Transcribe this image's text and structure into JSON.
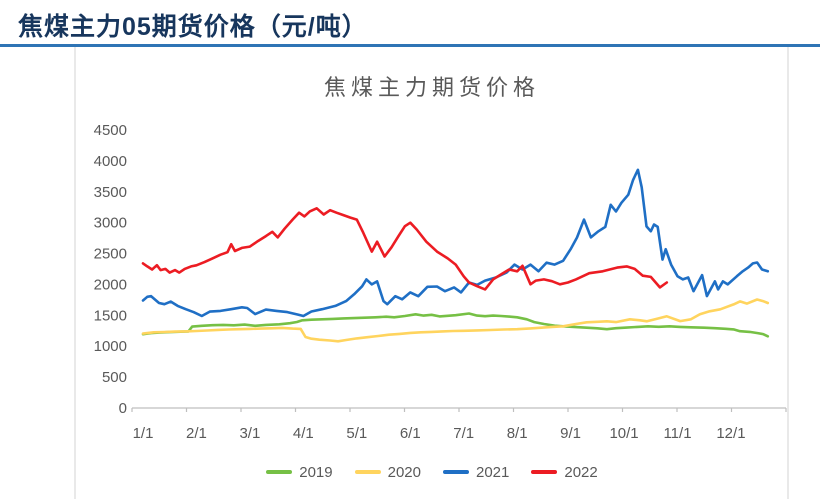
{
  "page": {
    "title": "焦煤主力05期货价格（元/吨）",
    "title_color": "#17365D",
    "rule_color": "#2E74B5"
  },
  "chart_data": {
    "type": "line",
    "title": "焦煤主力期货价格",
    "xlabel": "",
    "ylabel": "",
    "ylim": [
      0,
      4500
    ],
    "y_ticks": [
      0,
      500,
      1000,
      1500,
      2000,
      2500,
      3000,
      3500,
      4000,
      4500
    ],
    "x_tick_labels": [
      "1/1",
      "2/1",
      "3/1",
      "4/1",
      "5/1",
      "6/1",
      "7/1",
      "8/1",
      "9/1",
      "10/1",
      "11/1",
      "12/1"
    ],
    "grid": false,
    "legend_position": "bottom",
    "axis_color": "#BFBFBF",
    "text_color": "#595959",
    "x_is_month_index": true,
    "series": [
      {
        "name": "2019",
        "color": "#76C045",
        "points": [
          [
            0,
            1195
          ],
          [
            0.15,
            1212
          ],
          [
            0.3,
            1220
          ],
          [
            0.5,
            1228
          ],
          [
            0.7,
            1235
          ],
          [
            0.85,
            1240
          ],
          [
            0.92,
            1318
          ],
          [
            1.1,
            1330
          ],
          [
            1.3,
            1340
          ],
          [
            1.5,
            1345
          ],
          [
            1.7,
            1338
          ],
          [
            1.9,
            1350
          ],
          [
            2.1,
            1330
          ],
          [
            2.3,
            1345
          ],
          [
            2.55,
            1355
          ],
          [
            2.75,
            1372
          ],
          [
            2.88,
            1392
          ],
          [
            2.98,
            1420
          ],
          [
            3.15,
            1430
          ],
          [
            3.35,
            1436
          ],
          [
            3.55,
            1442
          ],
          [
            3.75,
            1450
          ],
          [
            3.95,
            1455
          ],
          [
            4.15,
            1462
          ],
          [
            4.35,
            1468
          ],
          [
            4.55,
            1478
          ],
          [
            4.7,
            1468
          ],
          [
            4.9,
            1490
          ],
          [
            5.1,
            1516
          ],
          [
            5.25,
            1495
          ],
          [
            5.4,
            1508
          ],
          [
            5.55,
            1482
          ],
          [
            5.7,
            1492
          ],
          [
            5.85,
            1502
          ],
          [
            6.1,
            1530
          ],
          [
            6.25,
            1496
          ],
          [
            6.4,
            1486
          ],
          [
            6.55,
            1496
          ],
          [
            6.7,
            1490
          ],
          [
            6.85,
            1480
          ],
          [
            7.0,
            1468
          ],
          [
            7.18,
            1436
          ],
          [
            7.32,
            1390
          ],
          [
            7.5,
            1360
          ],
          [
            7.7,
            1332
          ],
          [
            7.86,
            1322
          ],
          [
            8.1,
            1310
          ],
          [
            8.3,
            1300
          ],
          [
            8.5,
            1290
          ],
          [
            8.68,
            1275
          ],
          [
            8.85,
            1292
          ],
          [
            9.05,
            1302
          ],
          [
            9.25,
            1312
          ],
          [
            9.45,
            1322
          ],
          [
            9.65,
            1315
          ],
          [
            9.85,
            1322
          ],
          [
            10.05,
            1312
          ],
          [
            10.25,
            1306
          ],
          [
            10.5,
            1300
          ],
          [
            10.7,
            1292
          ],
          [
            10.9,
            1282
          ],
          [
            11.05,
            1272
          ],
          [
            11.17,
            1243
          ],
          [
            11.35,
            1232
          ],
          [
            11.5,
            1212
          ],
          [
            11.6,
            1196
          ],
          [
            11.69,
            1160
          ]
        ]
      },
      {
        "name": "2020",
        "color": "#FFD45E",
        "points": [
          [
            0,
            1205
          ],
          [
            0.2,
            1226
          ],
          [
            0.4,
            1230
          ],
          [
            0.6,
            1236
          ],
          [
            0.8,
            1240
          ],
          [
            1.0,
            1246
          ],
          [
            1.2,
            1255
          ],
          [
            1.4,
            1265
          ],
          [
            1.6,
            1270
          ],
          [
            1.8,
            1276
          ],
          [
            2.0,
            1280
          ],
          [
            2.2,
            1286
          ],
          [
            2.4,
            1290
          ],
          [
            2.6,
            1296
          ],
          [
            2.8,
            1286
          ],
          [
            2.95,
            1280
          ],
          [
            3.04,
            1150
          ],
          [
            3.15,
            1122
          ],
          [
            3.3,
            1106
          ],
          [
            3.5,
            1092
          ],
          [
            3.65,
            1080
          ],
          [
            3.8,
            1100
          ],
          [
            4.0,
            1126
          ],
          [
            4.2,
            1146
          ],
          [
            4.4,
            1166
          ],
          [
            4.6,
            1186
          ],
          [
            4.8,
            1200
          ],
          [
            5.0,
            1216
          ],
          [
            5.2,
            1226
          ],
          [
            5.4,
            1232
          ],
          [
            5.6,
            1240
          ],
          [
            5.8,
            1246
          ],
          [
            6.0,
            1250
          ],
          [
            6.25,
            1256
          ],
          [
            6.5,
            1262
          ],
          [
            6.75,
            1270
          ],
          [
            7.0,
            1276
          ],
          [
            7.25,
            1288
          ],
          [
            7.45,
            1300
          ],
          [
            7.65,
            1312
          ],
          [
            7.86,
            1322
          ],
          [
            8.1,
            1360
          ],
          [
            8.3,
            1387
          ],
          [
            8.5,
            1396
          ],
          [
            8.68,
            1403
          ],
          [
            8.85,
            1390
          ],
          [
            9.11,
            1436
          ],
          [
            9.3,
            1420
          ],
          [
            9.43,
            1403
          ],
          [
            9.6,
            1440
          ],
          [
            9.8,
            1484
          ],
          [
            10.05,
            1406
          ],
          [
            10.25,
            1436
          ],
          [
            10.42,
            1516
          ],
          [
            10.6,
            1566
          ],
          [
            10.8,
            1597
          ],
          [
            11.05,
            1677
          ],
          [
            11.17,
            1726
          ],
          [
            11.3,
            1690
          ],
          [
            11.49,
            1756
          ],
          [
            11.6,
            1730
          ],
          [
            11.69,
            1700
          ]
        ]
      },
      {
        "name": "2021",
        "color": "#1F6FC5",
        "points": [
          [
            0,
            1740
          ],
          [
            0.08,
            1800
          ],
          [
            0.15,
            1812
          ],
          [
            0.3,
            1700
          ],
          [
            0.4,
            1680
          ],
          [
            0.52,
            1722
          ],
          [
            0.65,
            1652
          ],
          [
            0.8,
            1600
          ],
          [
            0.95,
            1550
          ],
          [
            1.1,
            1490
          ],
          [
            1.25,
            1560
          ],
          [
            1.45,
            1572
          ],
          [
            1.65,
            1600
          ],
          [
            1.85,
            1630
          ],
          [
            1.95,
            1618
          ],
          [
            2.1,
            1520
          ],
          [
            2.3,
            1592
          ],
          [
            2.5,
            1572
          ],
          [
            2.7,
            1552
          ],
          [
            2.9,
            1512
          ],
          [
            3.0,
            1490
          ],
          [
            3.15,
            1562
          ],
          [
            3.35,
            1600
          ],
          [
            3.6,
            1652
          ],
          [
            3.8,
            1730
          ],
          [
            3.95,
            1840
          ],
          [
            4.1,
            1970
          ],
          [
            4.18,
            2082
          ],
          [
            4.28,
            2000
          ],
          [
            4.38,
            2050
          ],
          [
            4.5,
            1730
          ],
          [
            4.57,
            1680
          ],
          [
            4.72,
            1810
          ],
          [
            4.85,
            1760
          ],
          [
            5.0,
            1872
          ],
          [
            5.15,
            1810
          ],
          [
            5.32,
            1962
          ],
          [
            5.5,
            1966
          ],
          [
            5.65,
            1890
          ],
          [
            5.82,
            1952
          ],
          [
            5.95,
            1872
          ],
          [
            6.1,
            2032
          ],
          [
            6.25,
            1992
          ],
          [
            6.4,
            2062
          ],
          [
            6.6,
            2112
          ],
          [
            6.8,
            2192
          ],
          [
            6.95,
            2322
          ],
          [
            7.1,
            2242
          ],
          [
            7.25,
            2322
          ],
          [
            7.4,
            2212
          ],
          [
            7.55,
            2352
          ],
          [
            7.7,
            2322
          ],
          [
            7.86,
            2382
          ],
          [
            8.0,
            2570
          ],
          [
            8.12,
            2760
          ],
          [
            8.25,
            3050
          ],
          [
            8.38,
            2762
          ],
          [
            8.52,
            2860
          ],
          [
            8.65,
            2932
          ],
          [
            8.75,
            3290
          ],
          [
            8.85,
            3180
          ],
          [
            8.95,
            3322
          ],
          [
            9.08,
            3452
          ],
          [
            9.17,
            3692
          ],
          [
            9.26,
            3855
          ],
          [
            9.33,
            3572
          ],
          [
            9.42,
            2940
          ],
          [
            9.5,
            2860
          ],
          [
            9.56,
            2970
          ],
          [
            9.63,
            2932
          ],
          [
            9.72,
            2402
          ],
          [
            9.78,
            2570
          ],
          [
            9.88,
            2322
          ],
          [
            10.0,
            2132
          ],
          [
            10.1,
            2082
          ],
          [
            10.2,
            2112
          ],
          [
            10.3,
            1890
          ],
          [
            10.46,
            2152
          ],
          [
            10.55,
            1812
          ],
          [
            10.7,
            2050
          ],
          [
            10.76,
            1920
          ],
          [
            10.85,
            2050
          ],
          [
            10.94,
            2000
          ],
          [
            11.11,
            2132
          ],
          [
            11.22,
            2212
          ],
          [
            11.32,
            2272
          ],
          [
            11.41,
            2340
          ],
          [
            11.49,
            2356
          ],
          [
            11.58,
            2242
          ],
          [
            11.69,
            2212
          ]
        ]
      },
      {
        "name": "2022",
        "color": "#EC1C23",
        "points": [
          [
            0,
            2340
          ],
          [
            0.08,
            2292
          ],
          [
            0.17,
            2242
          ],
          [
            0.26,
            2312
          ],
          [
            0.33,
            2232
          ],
          [
            0.42,
            2252
          ],
          [
            0.5,
            2192
          ],
          [
            0.6,
            2232
          ],
          [
            0.68,
            2192
          ],
          [
            0.78,
            2252
          ],
          [
            0.9,
            2292
          ],
          [
            1.0,
            2310
          ],
          [
            1.15,
            2362
          ],
          [
            1.3,
            2422
          ],
          [
            1.45,
            2482
          ],
          [
            1.58,
            2522
          ],
          [
            1.65,
            2652
          ],
          [
            1.72,
            2542
          ],
          [
            1.85,
            2592
          ],
          [
            2.0,
            2612
          ],
          [
            2.15,
            2702
          ],
          [
            2.3,
            2782
          ],
          [
            2.42,
            2852
          ],
          [
            2.52,
            2762
          ],
          [
            2.65,
            2902
          ],
          [
            2.8,
            3052
          ],
          [
            2.92,
            3162
          ],
          [
            3.02,
            3102
          ],
          [
            3.12,
            3182
          ],
          [
            3.25,
            3232
          ],
          [
            3.38,
            3132
          ],
          [
            3.5,
            3202
          ],
          [
            3.62,
            3162
          ],
          [
            3.75,
            3122
          ],
          [
            3.88,
            3082
          ],
          [
            4.0,
            3050
          ],
          [
            4.12,
            2840
          ],
          [
            4.28,
            2532
          ],
          [
            4.38,
            2692
          ],
          [
            4.52,
            2452
          ],
          [
            4.65,
            2602
          ],
          [
            4.78,
            2782
          ],
          [
            4.9,
            2942
          ],
          [
            5.0,
            3000
          ],
          [
            5.12,
            2890
          ],
          [
            5.3,
            2692
          ],
          [
            5.5,
            2532
          ],
          [
            5.7,
            2422
          ],
          [
            5.85,
            2322
          ],
          [
            6.0,
            2132
          ],
          [
            6.1,
            2032
          ],
          [
            6.25,
            1972
          ],
          [
            6.4,
            1920
          ],
          [
            6.55,
            2082
          ],
          [
            6.7,
            2162
          ],
          [
            6.85,
            2242
          ],
          [
            7.0,
            2212
          ],
          [
            7.1,
            2302
          ],
          [
            7.25,
            2002
          ],
          [
            7.35,
            2062
          ],
          [
            7.5,
            2082
          ],
          [
            7.65,
            2052
          ],
          [
            7.8,
            2002
          ],
          [
            7.95,
            2032
          ],
          [
            8.1,
            2082
          ],
          [
            8.35,
            2182
          ],
          [
            8.6,
            2212
          ],
          [
            8.87,
            2272
          ],
          [
            9.05,
            2292
          ],
          [
            9.2,
            2252
          ],
          [
            9.35,
            2142
          ],
          [
            9.5,
            2122
          ],
          [
            9.67,
            1952
          ],
          [
            9.8,
            2032
          ]
        ]
      }
    ]
  }
}
